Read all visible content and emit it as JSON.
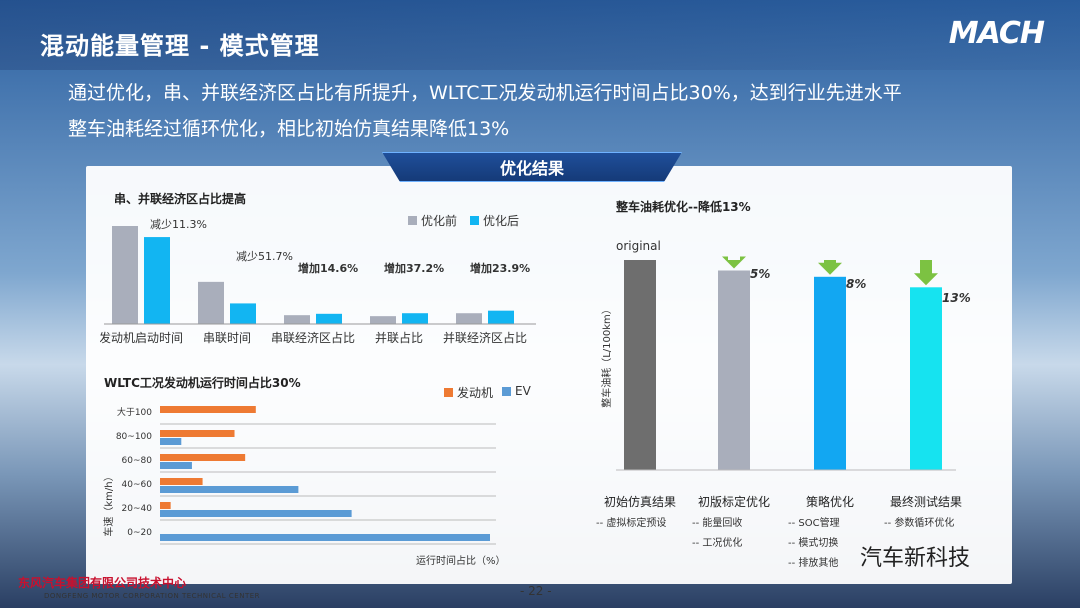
{
  "title": "混动能量管理 - 模式管理",
  "logo": "MACH",
  "subtitle1": "通过优化，串、并联经济区占比有所提升，WLTC工况发动机运行时间占比30%，达到行业先进水平",
  "subtitle2": "整车油耗经过循环优化，相比初始仿真结果降低13%",
  "badge": "优化结果",
  "footer": {
    "company": "东风汽车集团有限公司技术中心",
    "company_en": "DONGFENG MOTOR CORPORATION TECHNICAL CENTER",
    "page": "- 22 -",
    "watermark": "汽车新科技"
  },
  "colors": {
    "gray": "#a9aebb",
    "cyan": "#12b5f2",
    "orange": "#ee7a33",
    "blue": "#5b9bd5",
    "arrow": "#7cc242"
  },
  "chart_data": [
    {
      "type": "bar",
      "title": "串、并联经济区占比提高",
      "categories": [
        "发动机启动时间",
        "串联时间",
        "串联经济区占比",
        "并联占比",
        "并联经济区占比"
      ],
      "series": [
        {
          "name": "优化前",
          "values": [
            100,
            43,
            9,
            8,
            11
          ]
        },
        {
          "name": "优化后",
          "values": [
            88.7,
            21,
            10.4,
            11,
            13.6
          ]
        }
      ],
      "annotations": [
        "减少11.3%",
        "减少51.7%",
        "增加14.6%",
        "增加37.2%",
        "增加23.9%"
      ]
    },
    {
      "type": "bar",
      "orientation": "horizontal",
      "title": "WLTC工况发动机运行时间占比30%",
      "categories": [
        "大于100",
        "80~100",
        "60~80",
        "40~60",
        "20~40",
        "0~20"
      ],
      "ylabel": "车速（km/h）",
      "xlabel": "运行时间占比（%）",
      "series": [
        {
          "name": "发动机",
          "values": [
            9,
            7,
            8,
            4,
            1,
            0
          ]
        },
        {
          "name": "EV",
          "values": [
            0,
            2,
            3,
            13,
            18,
            31
          ]
        }
      ]
    },
    {
      "type": "bar",
      "title": "整车油耗优化--降低13%",
      "ylabel": "整车油耗（L/100km）",
      "categories": [
        "初始仿真结果",
        "初版标定优化",
        "策略优化",
        "最终测试结果"
      ],
      "notes": [
        [
          "-- 虚拟标定预设"
        ],
        [
          "-- 能量回收",
          "-- 工况优化"
        ],
        [
          "-- SOC管理",
          "-- 模式切换",
          "-- 排放其他"
        ],
        [
          "-- 参数循环优化"
        ]
      ],
      "values": [
        100,
        95,
        92,
        87
      ],
      "top_label": "original",
      "reductions": [
        "5%",
        "8%",
        "13%"
      ],
      "bar_colors": [
        "#6e6e6e",
        "#a9aebb",
        "#12a7f2",
        "#16e3f0"
      ]
    }
  ]
}
